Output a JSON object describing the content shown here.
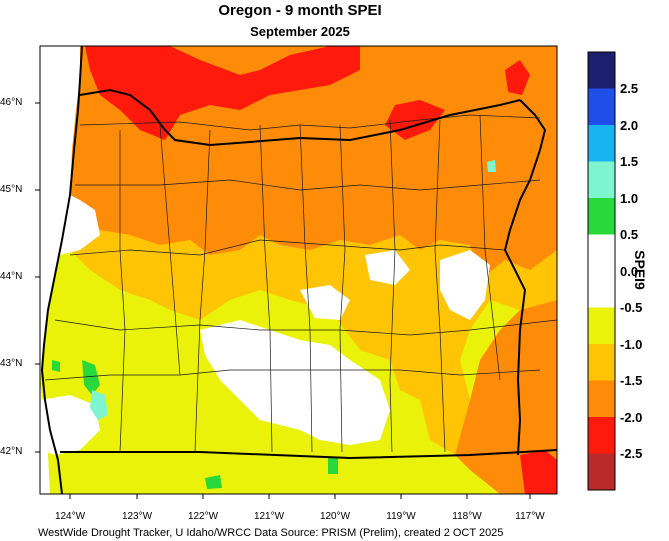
{
  "title": "Oregon - 9 month SPEI",
  "subtitle": "September 2025",
  "legend": {
    "axis_title": "SPEI9",
    "labels": [
      "2.5",
      "2.0",
      "1.5",
      "1.0",
      "0.5",
      "0.0",
      "-0.5",
      "-1.0",
      "-1.5",
      "-2.0",
      "-2.5"
    ],
    "colors": [
      "#1c1f6e",
      "#1f4fe8",
      "#17b4f0",
      "#7ff5cf",
      "#29d83a",
      "#ffffff",
      "#ffffff",
      "#eaf20a",
      "#ffc505",
      "#ff8c08",
      "#ff1a0c",
      "#b92a2a"
    ]
  },
  "x_ticks": [
    "124°W",
    "123°W",
    "122°W",
    "121°W",
    "120°W",
    "119°W",
    "118°W",
    "117°W"
  ],
  "y_ticks": [
    "46°N",
    "45°N",
    "44°N",
    "43°N",
    "42°N"
  ],
  "credit": "WestWide Drought Tracker, U Idaho/WRCC Data Source: PRISM (Prelim), created  2 OCT 2025",
  "colors": {
    "ocean": "#ffffff",
    "extreme": "#ff1a0c",
    "severe": "#ff8c08",
    "moderate": "#ffc505",
    "mild": "#eaf20a",
    "normal": "#ffffff",
    "wet": "#29d83a",
    "very_wet": "#7ff5cf"
  }
}
